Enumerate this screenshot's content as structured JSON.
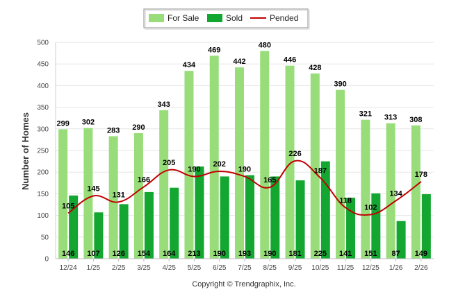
{
  "chart_data": {
    "type": "bar",
    "categories": [
      "12/24",
      "1/25",
      "2/25",
      "3/25",
      "4/25",
      "5/25",
      "6/25",
      "7/25",
      "8/25",
      "9/25",
      "10/25",
      "11/25",
      "12/25",
      "1/26",
      "2/26"
    ],
    "series": [
      {
        "name": "For Sale",
        "type": "bar",
        "color": "#99dd7a",
        "values": [
          299,
          302,
          283,
          290,
          343,
          434,
          469,
          442,
          480,
          446,
          428,
          390,
          321,
          313,
          308
        ]
      },
      {
        "name": "Sold",
        "type": "bar",
        "color": "#13a631",
        "values": [
          146,
          107,
          126,
          154,
          164,
          213,
          190,
          193,
          190,
          181,
          225,
          141,
          151,
          87,
          149
        ]
      },
      {
        "name": "Pended",
        "type": "line",
        "color": "#c00000",
        "values": [
          105,
          145,
          131,
          166,
          205,
          190,
          202,
          190,
          165,
          226,
          187,
          118,
          102,
          134,
          178
        ]
      }
    ],
    "title": "",
    "xlabel": "",
    "ylabel": "Number of Homes",
    "ylim": [
      0,
      500
    ],
    "yticks": [
      0,
      50,
      100,
      150,
      200,
      250,
      300,
      350,
      400,
      450,
      500
    ],
    "grid": true,
    "legend_position": "top-center"
  },
  "footer": {
    "copyright": "Copyright © Trendgraphix, Inc."
  }
}
